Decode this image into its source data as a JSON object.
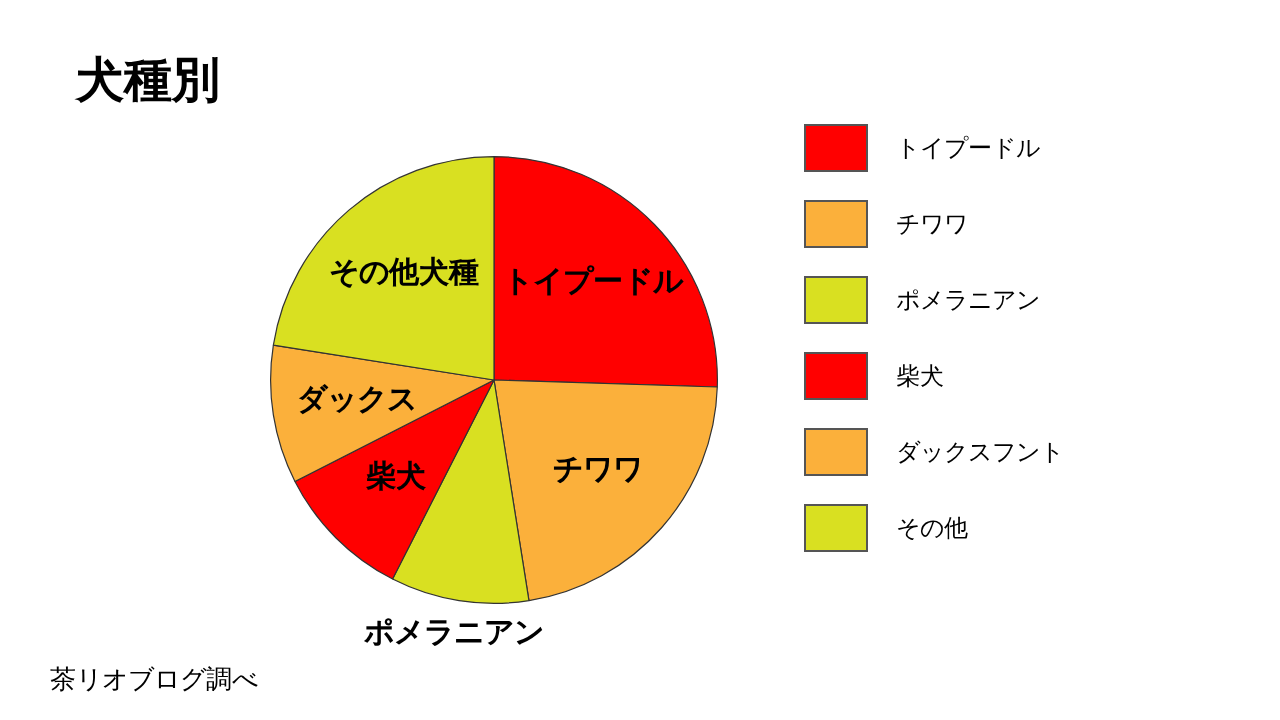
{
  "chart_data": {
    "type": "pie",
    "title": "犬種別",
    "categories": [
      "トイプードル",
      "チワワ",
      "ポメラニアン",
      "柴犬",
      "ダックスフント",
      "その他"
    ],
    "values": [
      25.5,
      22,
      10,
      10,
      10,
      22.5
    ],
    "colors": [
      "#ff0000",
      "#fbb03b",
      "#d9e021",
      "#ff0000",
      "#fbb03b",
      "#d9e021"
    ],
    "value_labels": [
      "トイプードル",
      "チワワ",
      "ポメラニアン",
      "柴犬",
      "ダックス",
      "その他犬種"
    ],
    "legend": "right",
    "annotations": [
      "茶リオブログ調べ"
    ]
  }
}
